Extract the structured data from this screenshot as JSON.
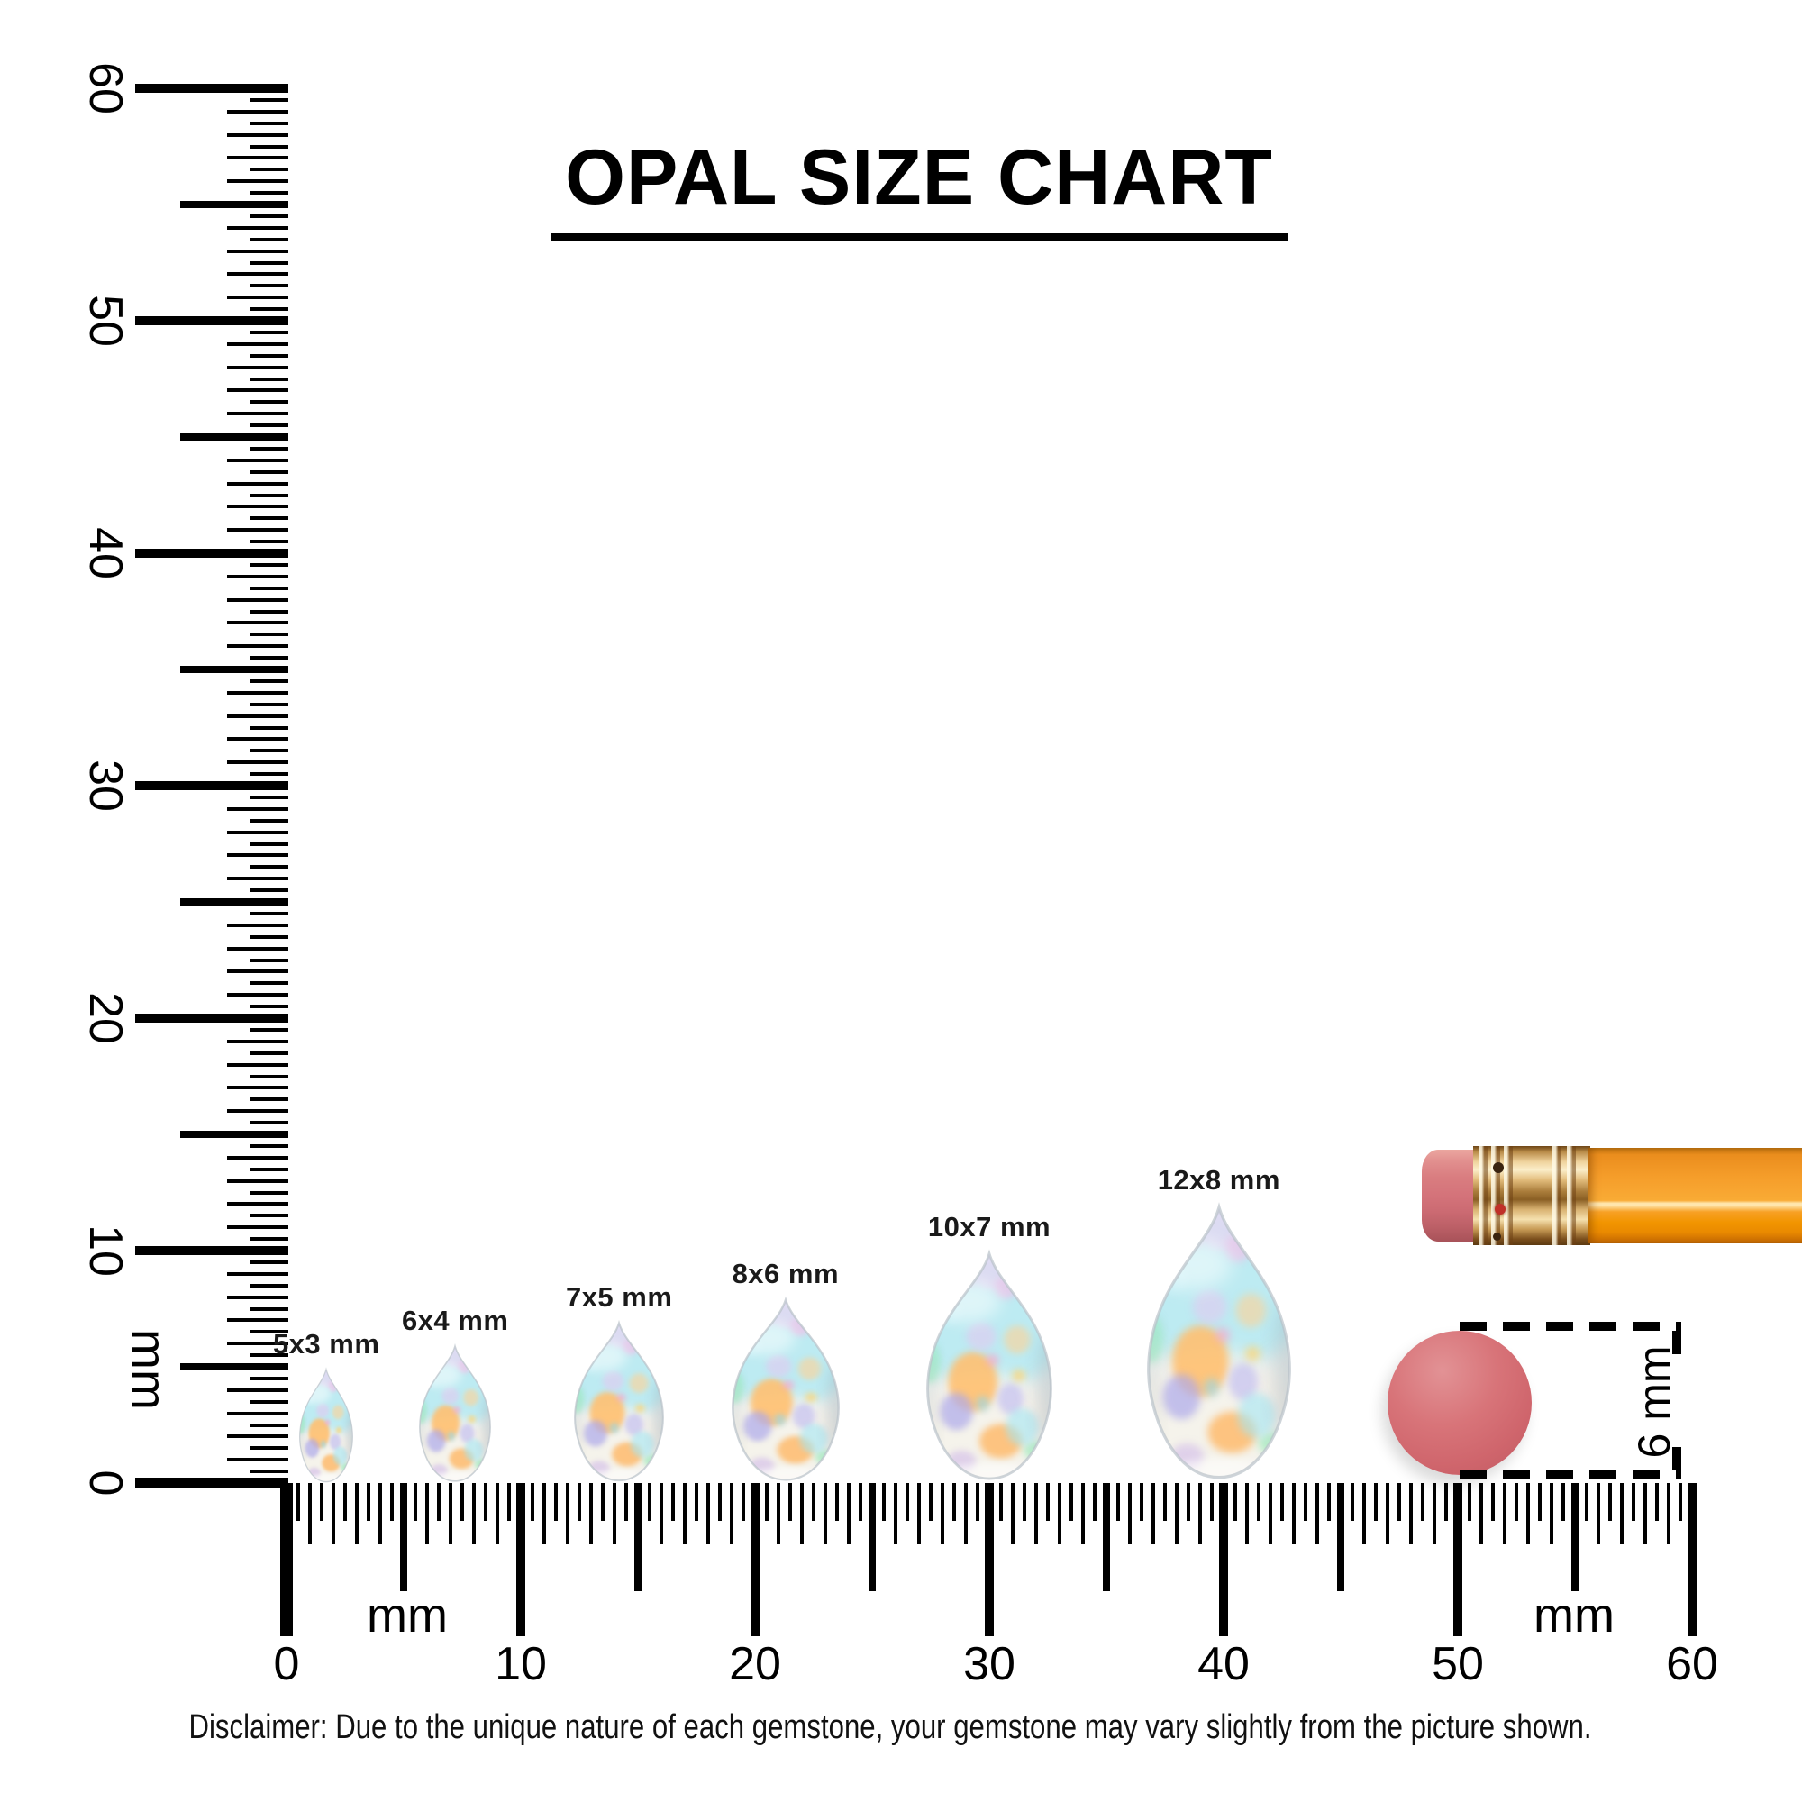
{
  "title": "OPAL SIZE CHART",
  "disclaimer": "Disclaimer: Due to the unique nature of each gemstone, your gemstone may vary slightly from the picture shown.",
  "rulers": {
    "unit": "mm",
    "min_mm": 0,
    "max_mm": 60,
    "tick_step_mm": 0.5,
    "horizontal": {
      "labels": [
        "0",
        "10",
        "20",
        "30",
        "40",
        "50",
        "60"
      ],
      "unit_labels": [
        "mm",
        "mm"
      ]
    },
    "vertical": {
      "labels": [
        "0",
        "10",
        "20",
        "30",
        "40",
        "50",
        "60"
      ],
      "unit_label": "mm"
    }
  },
  "gems": [
    {
      "label": "5x3 mm",
      "width_mm": 3,
      "height_mm": 5,
      "center_mm": 1.7
    },
    {
      "label": "6x4 mm",
      "width_mm": 4,
      "height_mm": 6,
      "center_mm": 7.2
    },
    {
      "label": "7x5 mm",
      "width_mm": 5,
      "height_mm": 7,
      "center_mm": 14.2
    },
    {
      "label": "8x6 mm",
      "width_mm": 6,
      "height_mm": 8,
      "center_mm": 21.3
    },
    {
      "label": "10x7 mm",
      "width_mm": 7,
      "height_mm": 10,
      "center_mm": 30.0
    },
    {
      "label": "12x8 mm",
      "width_mm": 8,
      "height_mm": 12,
      "center_mm": 39.8
    }
  ],
  "reference_objects": {
    "pencil": {
      "description": "pencil eraser end",
      "body_color": "#f59d2a",
      "ferrule_color": "#d9b271",
      "eraser_color": "#d4737a"
    },
    "eraser_circle": {
      "label": "6 mm",
      "diameter_mm": 6,
      "color": "#d4696f"
    }
  },
  "colors": {
    "ink": "#000000",
    "background": "#ffffff",
    "opal_base": "#eff3f0",
    "opal_cyan": "#b4e9f2",
    "opal_orange": "#ffc071",
    "opal_lavender": "#ada9ea",
    "opal_pink": "#f0bfe8",
    "opal_mint": "#97eec0"
  }
}
